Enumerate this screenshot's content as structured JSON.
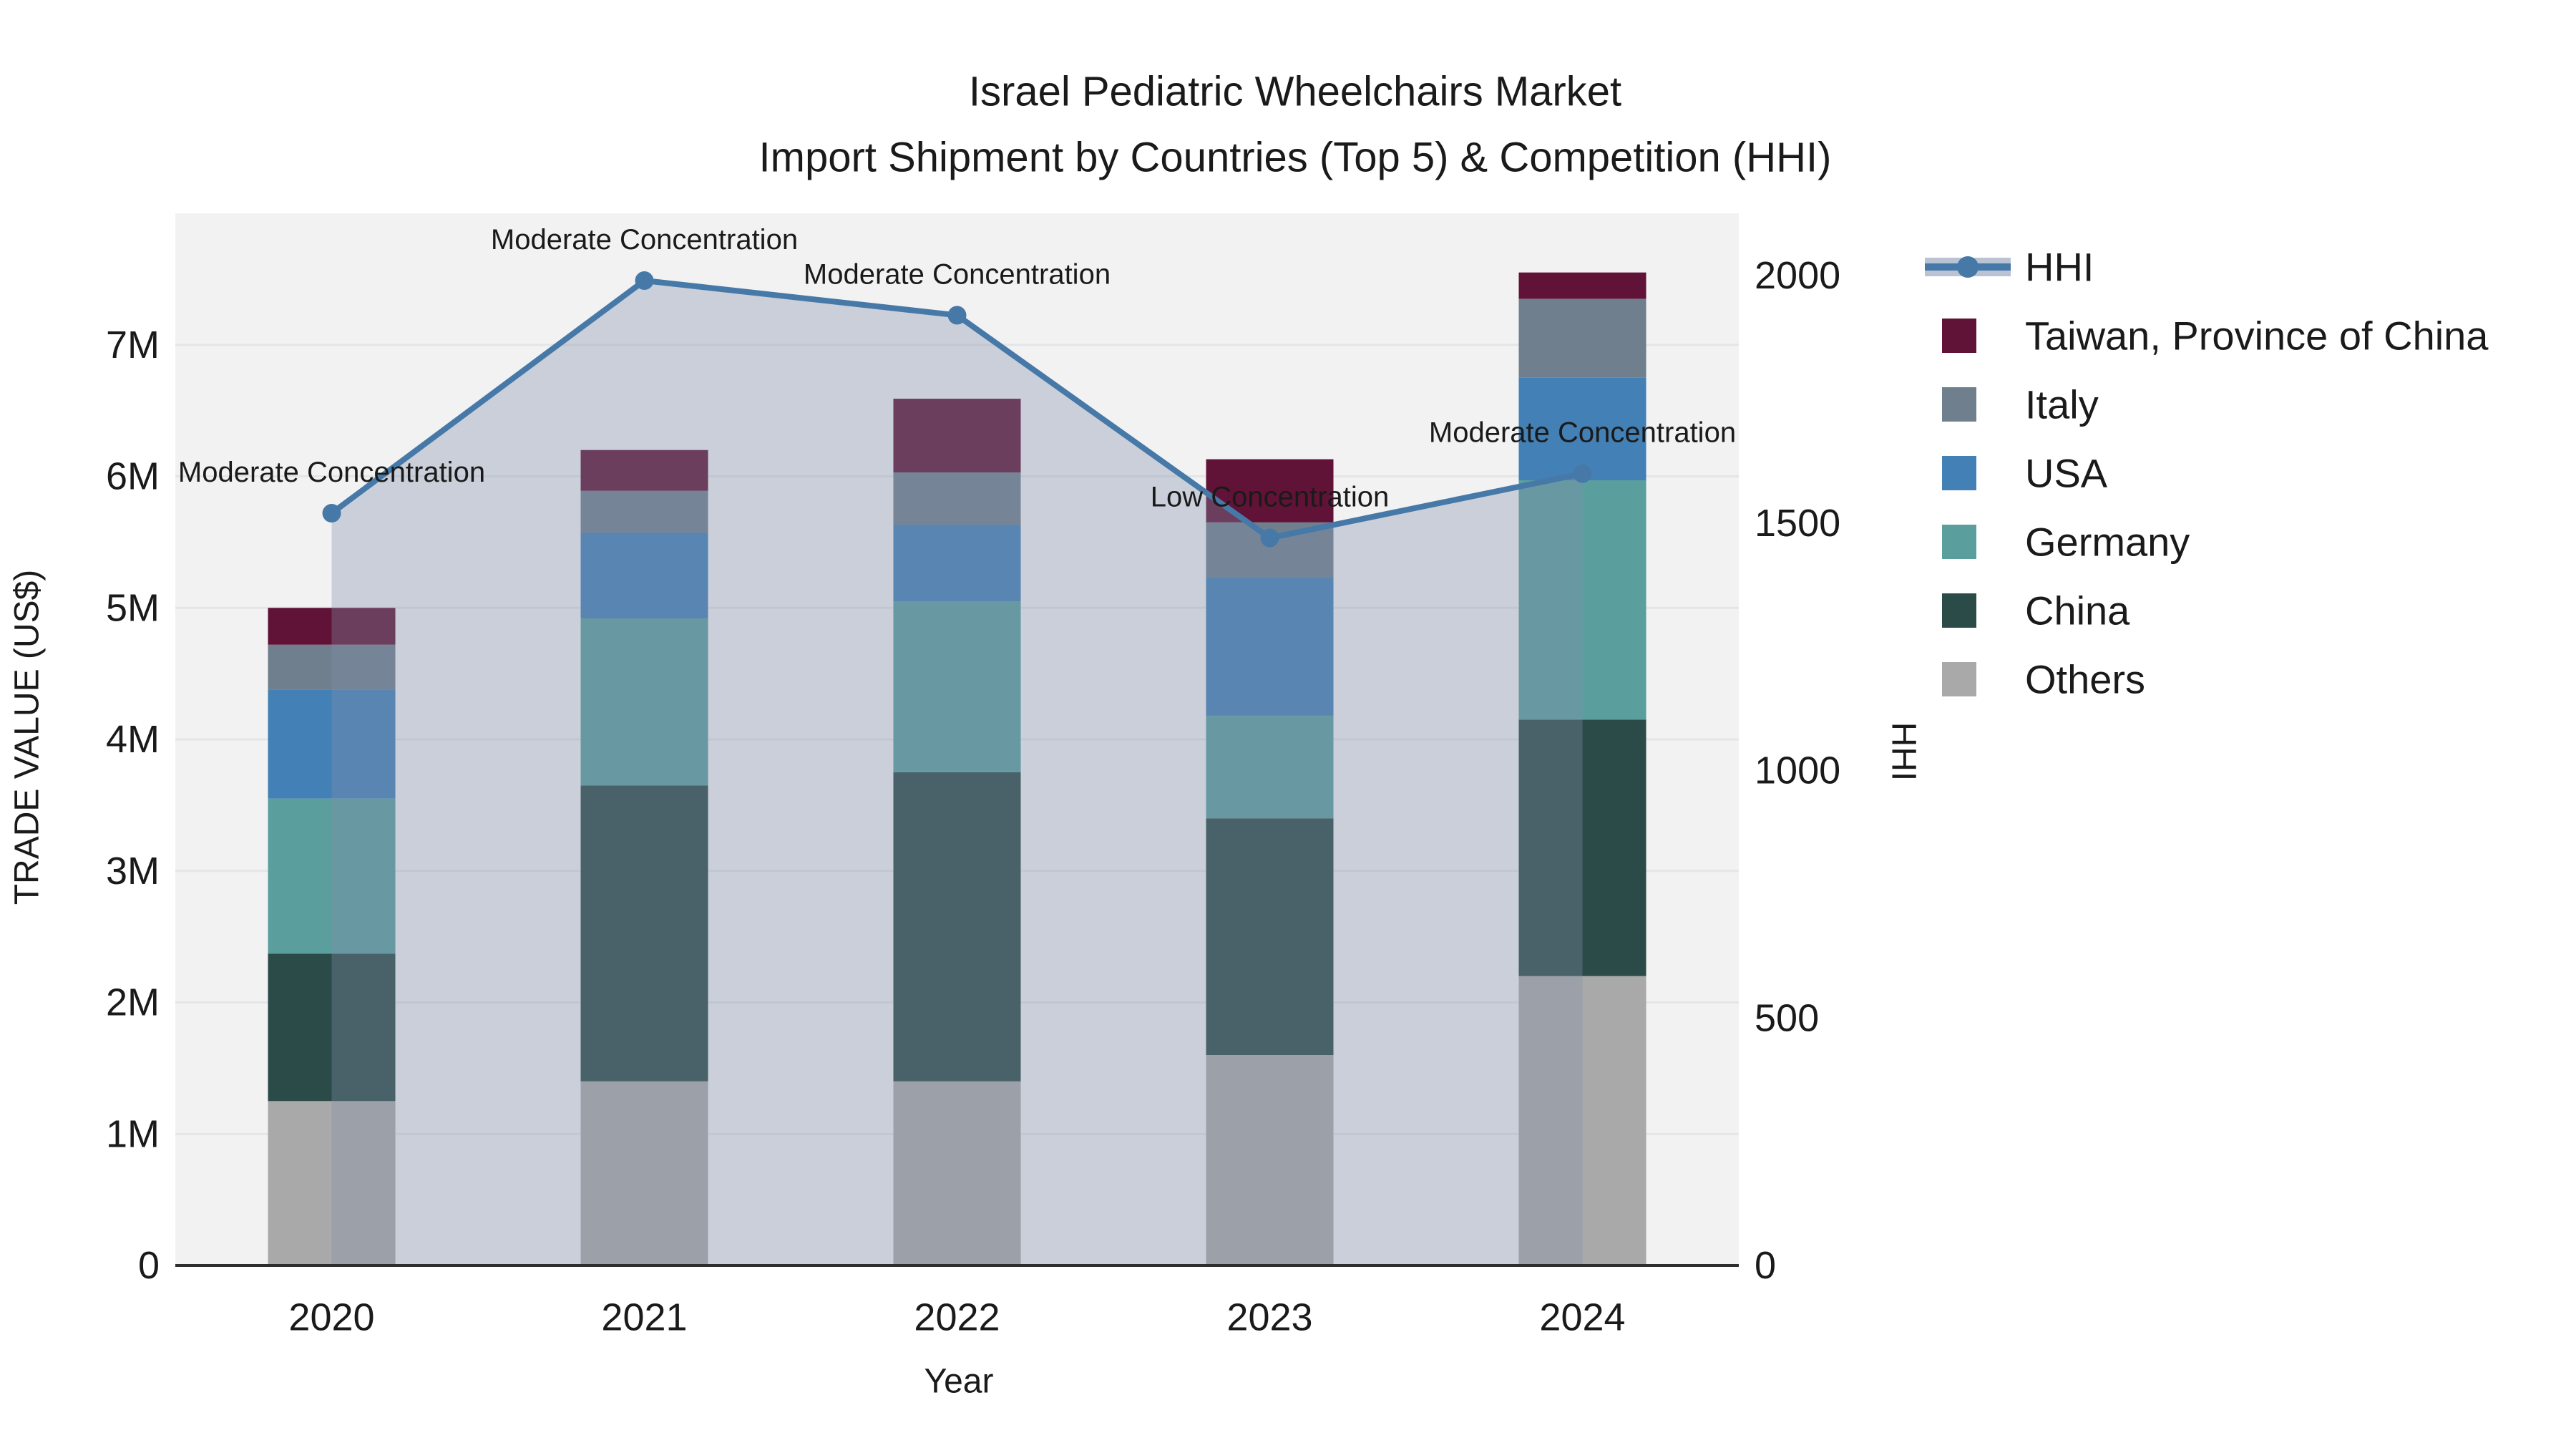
{
  "title": {
    "line1": "Israel Pediatric Wheelchairs Market",
    "line2": "Import Shipment by Countries (Top 5) & Competition (HHI)"
  },
  "chart_data": {
    "type": "bar",
    "subtype": "stacked-bars-with-line-overlay",
    "title": "Israel Pediatric Wheelchairs Market — Import Shipment by Countries (Top 5) & Competition (HHI)",
    "xlabel": "Year",
    "ylabel_left": "TRADE VALUE (US$)",
    "ylabel_right": "HHI",
    "categories": [
      "2020",
      "2021",
      "2022",
      "2023",
      "2024"
    ],
    "y_left_ticks": [
      "0",
      "1M",
      "2M",
      "3M",
      "4M",
      "5M",
      "6M",
      "7M"
    ],
    "y_left_tick_values": [
      0,
      1000000,
      2000000,
      3000000,
      4000000,
      5000000,
      6000000,
      7000000
    ],
    "y_left_max": 8000000,
    "y_right_ticks": [
      "0",
      "500",
      "1000",
      "1500",
      "2000"
    ],
    "y_right_tick_values": [
      0,
      500,
      1000,
      1500,
      2000
    ],
    "y_right_max": 2126,
    "grid": true,
    "legend_position": "right-outside",
    "stack_order_bottom_to_top": [
      "Others",
      "China",
      "Germany",
      "USA",
      "Italy",
      "Taiwan, Province of China"
    ],
    "series": [
      {
        "name": "Others",
        "color": "#a9a9a9",
        "values": [
          1250000,
          1400000,
          1400000,
          1600000,
          2200000
        ]
      },
      {
        "name": "China",
        "color": "#2b4b48",
        "values": [
          1120000,
          2250000,
          2350000,
          1800000,
          1950000
        ]
      },
      {
        "name": "Germany",
        "color": "#5b9e9e",
        "values": [
          1180000,
          1270000,
          1300000,
          780000,
          1820000
        ]
      },
      {
        "name": "USA",
        "color": "#4380b5",
        "values": [
          830000,
          650000,
          580000,
          1050000,
          780000
        ]
      },
      {
        "name": "Italy",
        "color": "#6f7f8e",
        "values": [
          340000,
          320000,
          400000,
          420000,
          600000
        ]
      },
      {
        "name": "Taiwan, Province of China",
        "color": "#601336",
        "values": [
          280000,
          310000,
          560000,
          480000,
          200000
        ]
      }
    ],
    "line_series": {
      "name": "HHI",
      "axis": "right",
      "color": "#4779a8",
      "area_fill": "rgba(128,144,168,0.35)",
      "values": [
        1520,
        1990,
        1920,
        1470,
        1600
      ]
    },
    "annotations": [
      {
        "category": "2020",
        "text": "Moderate Concentration"
      },
      {
        "category": "2021",
        "text": "Moderate Concentration"
      },
      {
        "category": "2022",
        "text": "Moderate Concentration"
      },
      {
        "category": "2023",
        "text": "Low Concentration"
      },
      {
        "category": "2024",
        "text": "Moderate Concentration"
      }
    ],
    "legend": [
      {
        "label": "HHI",
        "swatch": "line",
        "color": "#4779a8"
      },
      {
        "label": "Taiwan, Province of China",
        "swatch": "square",
        "color": "#601336"
      },
      {
        "label": "Italy",
        "swatch": "square",
        "color": "#6f7f8e"
      },
      {
        "label": "USA",
        "swatch": "square",
        "color": "#4380b5"
      },
      {
        "label": "Germany",
        "swatch": "square",
        "color": "#5b9e9e"
      },
      {
        "label": "China",
        "swatch": "square",
        "color": "#2b4b48"
      },
      {
        "label": "Others",
        "swatch": "square",
        "color": "#a9a9a9"
      }
    ],
    "colors": {
      "plot_background": "#f2f2f3",
      "gridline": "#e3e5e8",
      "axis_line": "#2e2e2e",
      "text": "#1a1a1a",
      "legend_line_band": "#b9c3d4"
    }
  }
}
